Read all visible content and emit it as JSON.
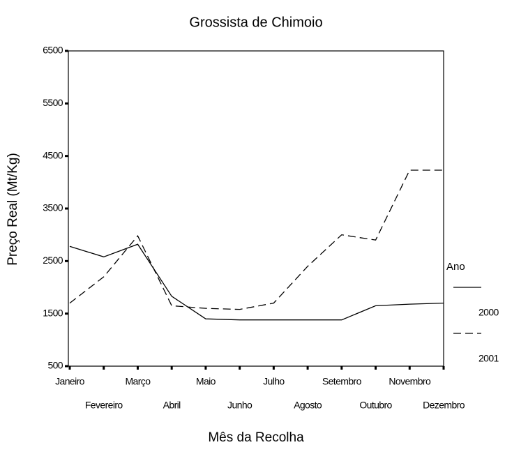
{
  "chart_data": {
    "type": "line",
    "title": "Grossista de Chimoio",
    "x_label": "Mês da Recolha",
    "y_label": "Preço Real (Mt/Kg)",
    "categories": [
      "Janeiro",
      "Fevereiro",
      "Março",
      "Abril",
      "Maio",
      "Junho",
      "Julho",
      "Agosto",
      "Setembro",
      "Outubro",
      "Novembro",
      "Dezembro"
    ],
    "series": [
      {
        "name": "2000",
        "color": "#000000",
        "style": "solid",
        "values": [
          2780,
          2580,
          2820,
          1830,
          1400,
          1380,
          1380,
          1380,
          1380,
          1650,
          1680,
          1700
        ]
      },
      {
        "name": "2001",
        "color": "#000000",
        "style": "dashed",
        "values": [
          1700,
          2200,
          2980,
          1650,
          1600,
          1580,
          1700,
          2400,
          3000,
          2900,
          4230,
          4230
        ]
      }
    ],
    "legend_title": "Ano",
    "legend_position": "right",
    "ylim": [
      500,
      6500
    ],
    "yticks": [
      500,
      1500,
      2500,
      3500,
      4500,
      5500,
      6500
    ],
    "grid": false
  }
}
